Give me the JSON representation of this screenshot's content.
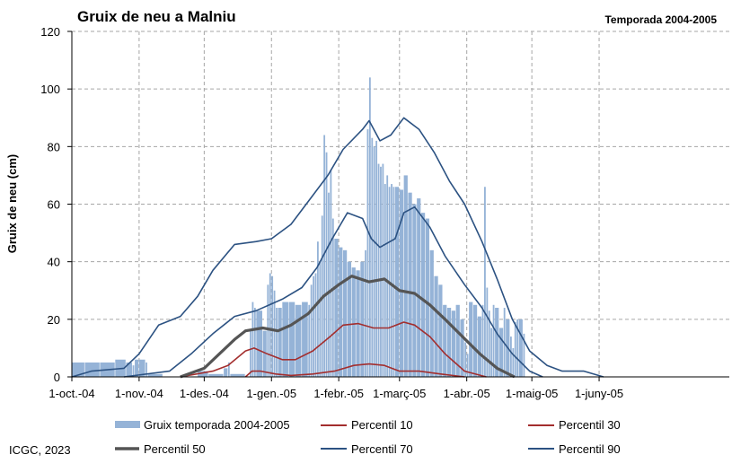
{
  "chart_data": {
    "type": "bar",
    "title": "Gruix de neu a Malniu",
    "subtitle": "Temporada 2004-2005",
    "xlabel": "",
    "ylabel": "Gruix de neu (cm)",
    "ylim": [
      0,
      120
    ],
    "yticks": [
      "0",
      "20",
      "40",
      "60",
      "80",
      "100",
      "120"
    ],
    "xlim": [
      "2004-10-01",
      "2005-07-31"
    ],
    "x_ticks": [
      {
        "date": "2004-10-01",
        "label": "1-oct.-04"
      },
      {
        "date": "2004-11-01",
        "label": "1-nov.-04"
      },
      {
        "date": "2004-12-01",
        "label": "1-des.-04"
      },
      {
        "date": "2005-01-01",
        "label": "1-gen.-05"
      },
      {
        "date": "2005-02-01",
        "label": "1-febr.-05"
      },
      {
        "date": "2005-03-01",
        "label": "1-març-05"
      },
      {
        "date": "2005-04-01",
        "label": "1-abr.-05"
      },
      {
        "date": "2005-05-01",
        "label": "1-maig-05"
      },
      {
        "date": "2005-06-01",
        "label": "1-juny-05"
      }
    ],
    "grid": true,
    "legend_position": "bottom",
    "colors": {
      "bars": "#95b3d7",
      "p10": "#a32e2e",
      "p30": "#a32e2e",
      "p50": "#555555",
      "p70": "#2c5282",
      "p90": "#2c5282",
      "grid": "#a6a6a6"
    },
    "bar_series": {
      "name": "Gruix temporada 2004-2005",
      "points": [
        [
          "2004-10-01",
          5
        ],
        [
          "2004-10-07",
          5
        ],
        [
          "2004-10-14",
          5
        ],
        [
          "2004-10-21",
          6
        ],
        [
          "2004-10-26",
          5
        ],
        [
          "2004-10-29",
          4
        ],
        [
          "2004-10-30",
          6
        ],
        [
          "2004-11-01",
          6
        ],
        [
          "2004-11-04",
          5
        ],
        [
          "2004-11-05",
          1
        ],
        [
          "2004-11-28",
          2
        ],
        [
          "2004-12-03",
          1
        ],
        [
          "2004-12-10",
          3
        ],
        [
          "2004-12-12",
          5
        ],
        [
          "2004-12-13",
          1
        ],
        [
          "2004-12-22",
          16
        ],
        [
          "2004-12-23",
          26
        ],
        [
          "2004-12-24",
          24
        ],
        [
          "2004-12-25",
          23
        ],
        [
          "2004-12-28",
          16
        ],
        [
          "2004-12-30",
          32
        ],
        [
          "2004-12-31",
          36
        ],
        [
          "2005-01-01",
          35
        ],
        [
          "2005-01-02",
          30
        ],
        [
          "2005-01-03",
          24
        ],
        [
          "2005-01-04",
          24
        ],
        [
          "2005-01-06",
          26
        ],
        [
          "2005-01-09",
          26
        ],
        [
          "2005-01-12",
          25
        ],
        [
          "2005-01-15",
          26
        ],
        [
          "2005-01-18",
          25
        ],
        [
          "2005-01-19",
          32
        ],
        [
          "2005-01-20",
          35
        ],
        [
          "2005-01-21",
          36
        ],
        [
          "2005-01-22",
          47
        ],
        [
          "2005-01-23",
          40
        ],
        [
          "2005-01-24",
          56
        ],
        [
          "2005-01-25",
          84
        ],
        [
          "2005-01-26",
          78
        ],
        [
          "2005-01-27",
          64
        ],
        [
          "2005-01-28",
          72
        ],
        [
          "2005-01-29",
          55
        ],
        [
          "2005-01-30",
          48
        ],
        [
          "2005-02-01",
          45
        ],
        [
          "2005-02-03",
          44
        ],
        [
          "2005-02-05",
          40
        ],
        [
          "2005-02-07",
          38
        ],
        [
          "2005-02-09",
          37
        ],
        [
          "2005-02-11",
          40
        ],
        [
          "2005-02-13",
          44
        ],
        [
          "2005-02-14",
          86
        ],
        [
          "2005-02-15",
          104
        ],
        [
          "2005-02-16",
          83
        ],
        [
          "2005-02-17",
          80
        ],
        [
          "2005-02-18",
          82
        ],
        [
          "2005-02-19",
          74
        ],
        [
          "2005-02-20",
          73
        ],
        [
          "2005-02-21",
          74
        ],
        [
          "2005-02-22",
          67
        ],
        [
          "2005-02-23",
          70
        ],
        [
          "2005-02-24",
          66
        ],
        [
          "2005-02-25",
          67
        ],
        [
          "2005-02-26",
          66
        ],
        [
          "2005-02-27",
          66
        ],
        [
          "2005-03-01",
          65
        ],
        [
          "2005-03-03",
          70
        ],
        [
          "2005-03-05",
          64
        ],
        [
          "2005-03-07",
          60
        ],
        [
          "2005-03-09",
          62
        ],
        [
          "2005-03-11",
          57
        ],
        [
          "2005-03-13",
          55
        ],
        [
          "2005-03-15",
          44
        ],
        [
          "2005-03-17",
          35
        ],
        [
          "2005-03-19",
          32
        ],
        [
          "2005-03-21",
          25
        ],
        [
          "2005-03-23",
          24
        ],
        [
          "2005-03-25",
          23
        ],
        [
          "2005-03-27",
          25
        ],
        [
          "2005-03-29",
          20
        ],
        [
          "2005-03-31",
          12
        ],
        [
          "2005-04-01",
          8
        ],
        [
          "2005-04-02",
          26
        ],
        [
          "2005-04-04",
          25
        ],
        [
          "2005-04-06",
          21
        ],
        [
          "2005-04-08",
          25
        ],
        [
          "2005-04-09",
          66
        ],
        [
          "2005-04-10",
          31
        ],
        [
          "2005-04-11",
          23
        ],
        [
          "2005-04-12",
          17
        ],
        [
          "2005-04-13",
          25
        ],
        [
          "2005-04-14",
          24
        ],
        [
          "2005-04-16",
          17
        ],
        [
          "2005-04-18",
          24
        ],
        [
          "2005-04-19",
          20
        ],
        [
          "2005-04-21",
          14
        ],
        [
          "2005-04-22",
          10
        ],
        [
          "2005-04-23",
          19
        ],
        [
          "2005-04-24",
          20
        ],
        [
          "2005-04-25",
          20
        ],
        [
          "2005-04-27",
          15
        ]
      ]
    },
    "series": [
      {
        "name": "Percentil 10",
        "points": [
          [
            "2004-12-20",
            0
          ],
          [
            "2004-12-23",
            2
          ],
          [
            "2004-12-27",
            2
          ],
          [
            "2005-01-03",
            1
          ],
          [
            "2005-01-10",
            0.5
          ],
          [
            "2005-01-20",
            1
          ],
          [
            "2005-01-30",
            2
          ],
          [
            "2005-02-08",
            4
          ],
          [
            "2005-02-15",
            4.5
          ],
          [
            "2005-02-22",
            4
          ],
          [
            "2005-03-01",
            2
          ],
          [
            "2005-03-10",
            2
          ],
          [
            "2005-03-20",
            1
          ],
          [
            "2005-03-31",
            0
          ]
        ]
      },
      {
        "name": "Percentil 30",
        "points": [
          [
            "2004-11-20",
            0
          ],
          [
            "2004-12-05",
            2
          ],
          [
            "2004-12-12",
            4
          ],
          [
            "2004-12-20",
            9
          ],
          [
            "2004-12-24",
            10
          ],
          [
            "2004-12-30",
            8
          ],
          [
            "2005-01-06",
            6
          ],
          [
            "2005-01-12",
            6
          ],
          [
            "2005-01-20",
            9
          ],
          [
            "2005-01-28",
            14
          ],
          [
            "2005-02-03",
            18
          ],
          [
            "2005-02-10",
            18.5
          ],
          [
            "2005-02-17",
            17
          ],
          [
            "2005-02-24",
            17
          ],
          [
            "2005-03-03",
            19
          ],
          [
            "2005-03-08",
            18
          ],
          [
            "2005-03-15",
            14
          ],
          [
            "2005-03-22",
            8
          ],
          [
            "2005-03-31",
            2
          ],
          [
            "2005-04-10",
            0
          ]
        ]
      },
      {
        "name": "Percentil 50",
        "points": [
          [
            "2004-11-20",
            0
          ],
          [
            "2004-12-01",
            3
          ],
          [
            "2004-12-08",
            8
          ],
          [
            "2004-12-15",
            13
          ],
          [
            "2004-12-20",
            16
          ],
          [
            "2004-12-28",
            17
          ],
          [
            "2005-01-04",
            16
          ],
          [
            "2005-01-10",
            18
          ],
          [
            "2005-01-18",
            22
          ],
          [
            "2005-01-25",
            28
          ],
          [
            "2005-02-01",
            32
          ],
          [
            "2005-02-07",
            35
          ],
          [
            "2005-02-15",
            33
          ],
          [
            "2005-02-22",
            34
          ],
          [
            "2005-03-01",
            30
          ],
          [
            "2005-03-08",
            29
          ],
          [
            "2005-03-15",
            25
          ],
          [
            "2005-03-22",
            20
          ],
          [
            "2005-03-30",
            14
          ],
          [
            "2005-04-07",
            8
          ],
          [
            "2005-04-15",
            3
          ],
          [
            "2005-04-23",
            0
          ]
        ]
      },
      {
        "name": "Percentil 70",
        "points": [
          [
            "2004-10-25",
            0
          ],
          [
            "2004-11-15",
            2
          ],
          [
            "2004-11-25",
            8
          ],
          [
            "2004-12-05",
            15
          ],
          [
            "2004-12-15",
            21
          ],
          [
            "2004-12-25",
            23
          ],
          [
            "2005-01-06",
            27
          ],
          [
            "2005-01-15",
            31
          ],
          [
            "2005-01-22",
            38
          ],
          [
            "2005-01-29",
            48
          ],
          [
            "2005-02-05",
            57
          ],
          [
            "2005-02-12",
            55
          ],
          [
            "2005-02-16",
            48
          ],
          [
            "2005-02-20",
            45
          ],
          [
            "2005-02-27",
            48
          ],
          [
            "2005-03-03",
            57
          ],
          [
            "2005-03-08",
            59
          ],
          [
            "2005-03-15",
            52
          ],
          [
            "2005-03-22",
            42
          ],
          [
            "2005-03-31",
            32
          ],
          [
            "2005-04-08",
            24
          ],
          [
            "2005-04-15",
            15
          ],
          [
            "2005-04-22",
            8
          ],
          [
            "2005-04-30",
            2
          ],
          [
            "2005-05-06",
            0
          ]
        ]
      },
      {
        "name": "Percentil 90",
        "points": [
          [
            "2004-10-01",
            0
          ],
          [
            "2004-10-10",
            2
          ],
          [
            "2004-10-25",
            3
          ],
          [
            "2004-11-01",
            8
          ],
          [
            "2004-11-10",
            18
          ],
          [
            "2004-11-20",
            21
          ],
          [
            "2004-11-28",
            28
          ],
          [
            "2004-12-05",
            37
          ],
          [
            "2004-12-15",
            46
          ],
          [
            "2004-12-25",
            47
          ],
          [
            "2005-01-01",
            48
          ],
          [
            "2005-01-10",
            53
          ],
          [
            "2005-01-20",
            63
          ],
          [
            "2005-01-27",
            70
          ],
          [
            "2005-02-03",
            79
          ],
          [
            "2005-02-12",
            86
          ],
          [
            "2005-02-15",
            89
          ],
          [
            "2005-02-20",
            82
          ],
          [
            "2005-02-25",
            84
          ],
          [
            "2005-03-03",
            90
          ],
          [
            "2005-03-10",
            86
          ],
          [
            "2005-03-17",
            78
          ],
          [
            "2005-03-24",
            68
          ],
          [
            "2005-03-31",
            60
          ],
          [
            "2005-04-08",
            47
          ],
          [
            "2005-04-15",
            34
          ],
          [
            "2005-04-22",
            20
          ],
          [
            "2005-04-30",
            9
          ],
          [
            "2005-05-08",
            4
          ],
          [
            "2005-05-15",
            2
          ],
          [
            "2005-05-25",
            2
          ],
          [
            "2005-06-03",
            0
          ]
        ]
      }
    ]
  },
  "footer": {
    "credit": "ICGC, 2023"
  }
}
